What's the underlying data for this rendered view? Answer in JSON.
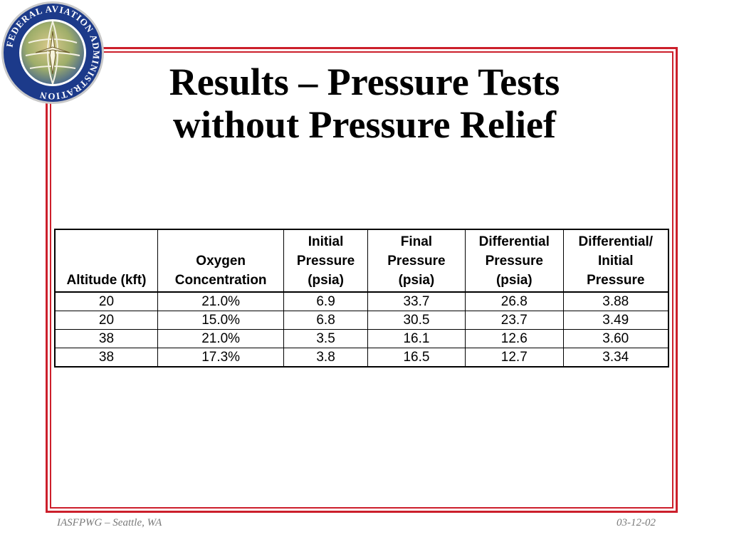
{
  "logo": {
    "name": "faa-seal-icon",
    "ring_text": "FEDERAL AVIATION ADMINISTRATION"
  },
  "slide": {
    "title_lines": [
      "Results – Pressure Tests",
      "without Pressure Relief"
    ]
  },
  "table": {
    "headers": [
      [
        "Altitude (kft)"
      ],
      [
        "Oxygen",
        "Concentration"
      ],
      [
        "Initial",
        "Pressure",
        "(psia)"
      ],
      [
        "Final",
        "Pressure",
        "(psia)"
      ],
      [
        "Differential",
        "Pressure",
        "(psia)"
      ],
      [
        "Differential/",
        "Initial",
        "Pressure"
      ]
    ],
    "rows": [
      [
        "20",
        "21.0%",
        "6.9",
        "33.7",
        "26.8",
        "3.88"
      ],
      [
        "20",
        "15.0%",
        "6.8",
        "30.5",
        "23.7",
        "3.49"
      ],
      [
        "38",
        "21.0%",
        "3.5",
        "16.1",
        "12.6",
        "3.60"
      ],
      [
        "38",
        "17.3%",
        "3.8",
        "16.5",
        "12.7",
        "3.34"
      ]
    ]
  },
  "footer": {
    "left": "IASFPWG – Seattle, WA",
    "right": "03-12-02"
  },
  "colors": {
    "frame": "#cc1f2b",
    "seal_ring": "#1c3a8a",
    "footer_text": "#7a7a7a"
  }
}
